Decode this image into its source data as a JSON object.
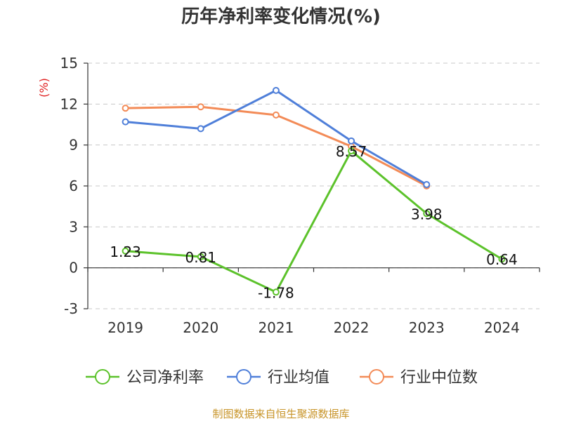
{
  "chart_data": {
    "type": "line",
    "title": "历年净利率变化情况(%)",
    "ylabel": "(%)",
    "categories": [
      "2019",
      "2020",
      "2021",
      "2022",
      "2023",
      "2024"
    ],
    "ylim": [
      -3,
      15
    ],
    "yticks": [
      -3,
      0,
      3,
      6,
      9,
      12,
      15
    ],
    "grid": true,
    "legend_position": "bottom",
    "series": [
      {
        "name": "公司净利率",
        "color": "#5cc22b",
        "values": [
          1.23,
          0.81,
          -1.78,
          8.57,
          3.98,
          0.64
        ],
        "labels": [
          "1.23",
          "0.81",
          "-1.78",
          "8.57",
          "3.98",
          "0.64"
        ]
      },
      {
        "name": "行业均值",
        "color": "#4f7fd9",
        "values": [
          10.7,
          10.2,
          13.0,
          9.3,
          6.1,
          null
        ]
      },
      {
        "name": "行业中位数",
        "color": "#f38b57",
        "values": [
          11.7,
          11.8,
          11.2,
          8.9,
          6.0,
          null
        ]
      }
    ]
  },
  "footer": {
    "source": "制图数据来自恒生聚源数据库"
  }
}
